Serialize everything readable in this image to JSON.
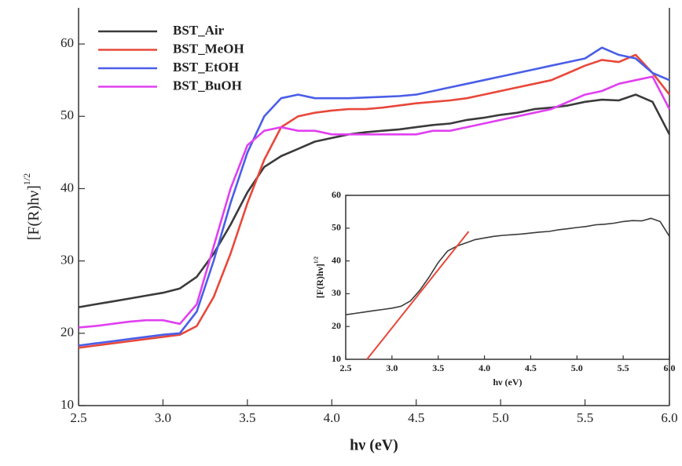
{
  "chart_data": [
    {
      "type": "line",
      "xlabel": "hν (eV)",
      "ylabel": "[F(R)hν]",
      "ylabel_superscript": "1/2",
      "xlim": [
        2.5,
        6.0
      ],
      "ylim": [
        10,
        65
      ],
      "xticks": [
        2.5,
        {
          "value": 3,
          "label": "3.0"
        },
        3.5,
        {
          "value": 4,
          "label": "4.0"
        },
        4.5,
        {
          "value": 5,
          "label": "5.0"
        },
        5.5,
        {
          "value": 6,
          "label": "6.0"
        }
      ],
      "yticks": [
        10,
        20,
        30,
        40,
        50,
        60
      ],
      "grid": false,
      "legend": "upper left",
      "x": [
        2.5,
        2.6,
        2.7,
        2.8,
        2.9,
        3.0,
        3.1,
        3.2,
        3.3,
        3.4,
        3.5,
        3.6,
        3.7,
        3.8,
        3.9,
        4.0,
        4.1,
        4.2,
        4.3,
        4.4,
        4.5,
        4.6,
        4.7,
        4.8,
        4.9,
        5.0,
        5.1,
        5.2,
        5.3,
        5.4,
        5.5,
        5.6,
        5.7,
        5.8,
        5.9,
        6.0
      ],
      "series": [
        {
          "name": "BST_Air",
          "color": "#3b3b3b",
          "values": [
            23.6,
            24,
            24.4,
            24.8,
            25.2,
            25.6,
            26.2,
            27.8,
            31,
            35,
            39.5,
            43,
            44.5,
            45.5,
            46.5,
            47,
            47.5,
            47.8,
            48,
            48.2,
            48.5,
            48.8,
            49,
            49.5,
            49.8,
            50.2,
            50.5,
            51,
            51.2,
            51.5,
            52,
            52.3,
            52.2,
            53,
            52,
            47.5
          ]
        },
        {
          "name": "BST_MeOH",
          "color": "#e8483b",
          "values": [
            18,
            18.3,
            18.6,
            18.9,
            19.2,
            19.5,
            19.8,
            21,
            25,
            31,
            38,
            44,
            48.5,
            50,
            50.5,
            50.8,
            51,
            51,
            51.2,
            51.5,
            51.8,
            52,
            52.2,
            52.5,
            53,
            53.5,
            54,
            54.5,
            55,
            56,
            57,
            57.8,
            57.5,
            58.5,
            56,
            53
          ]
        },
        {
          "name": "BST_EtOH",
          "color": "#4a5ee8",
          "values": [
            18.3,
            18.6,
            18.9,
            19.2,
            19.5,
            19.8,
            20,
            23,
            30,
            38,
            45,
            50,
            52.5,
            53,
            52.5,
            52.5,
            52.5,
            52.6,
            52.7,
            52.8,
            53,
            53.5,
            54,
            54.5,
            55,
            55.5,
            56,
            56.5,
            57,
            57.5,
            58,
            59.5,
            58.5,
            58,
            56,
            55
          ]
        },
        {
          "name": "BST_BuOH",
          "color": "#e040f0",
          "values": [
            20.8,
            21,
            21.3,
            21.6,
            21.8,
            21.8,
            21.3,
            24,
            32,
            40,
            46,
            48,
            48.5,
            48,
            48,
            47.5,
            47.5,
            47.5,
            47.5,
            47.5,
            47.5,
            48,
            48,
            48.5,
            49,
            49.5,
            50,
            50.5,
            51,
            52,
            53,
            53.5,
            54.5,
            55,
            55.5,
            51
          ]
        }
      ]
    },
    {
      "type": "line",
      "xlabel": "hν (eV)",
      "ylabel": "[F(R)hν]",
      "ylabel_superscript": "1/2",
      "xlim": [
        2.5,
        6.0
      ],
      "ylim": [
        10,
        60
      ],
      "xticks": [
        2.5,
        {
          "value": 3,
          "label": "3.0"
        },
        3.5,
        {
          "value": 4,
          "label": "4.0"
        },
        4.5,
        {
          "value": 5,
          "label": "5.0"
        },
        5.5,
        {
          "value": 6,
          "label": "6.0"
        }
      ],
      "yticks": [
        10,
        20,
        30,
        40,
        50,
        60
      ],
      "grid": false,
      "x": [
        2.5,
        2.6,
        2.7,
        2.8,
        2.9,
        3.0,
        3.1,
        3.2,
        3.3,
        3.4,
        3.5,
        3.6,
        3.7,
        3.8,
        3.9,
        4.0,
        4.1,
        4.2,
        4.3,
        4.4,
        4.5,
        4.6,
        4.7,
        4.8,
        4.9,
        5.0,
        5.1,
        5.2,
        5.3,
        5.4,
        5.5,
        5.6,
        5.7,
        5.8,
        5.9,
        6.0
      ],
      "series": [
        {
          "color": "#3b3b3b",
          "values": [
            23.6,
            24,
            24.4,
            24.8,
            25.2,
            25.6,
            26.2,
            27.8,
            31,
            35,
            39.5,
            43,
            44.5,
            45.5,
            46.5,
            47,
            47.5,
            47.8,
            48,
            48.2,
            48.5,
            48.8,
            49,
            49.5,
            49.8,
            50.2,
            50.5,
            51,
            51.2,
            51.5,
            52,
            52.3,
            52.2,
            53,
            52,
            47.5
          ]
        }
      ],
      "fit": {
        "color": "#e8483b",
        "x": [
          2.73,
          3.83
        ],
        "values": [
          10,
          49
        ]
      }
    }
  ]
}
